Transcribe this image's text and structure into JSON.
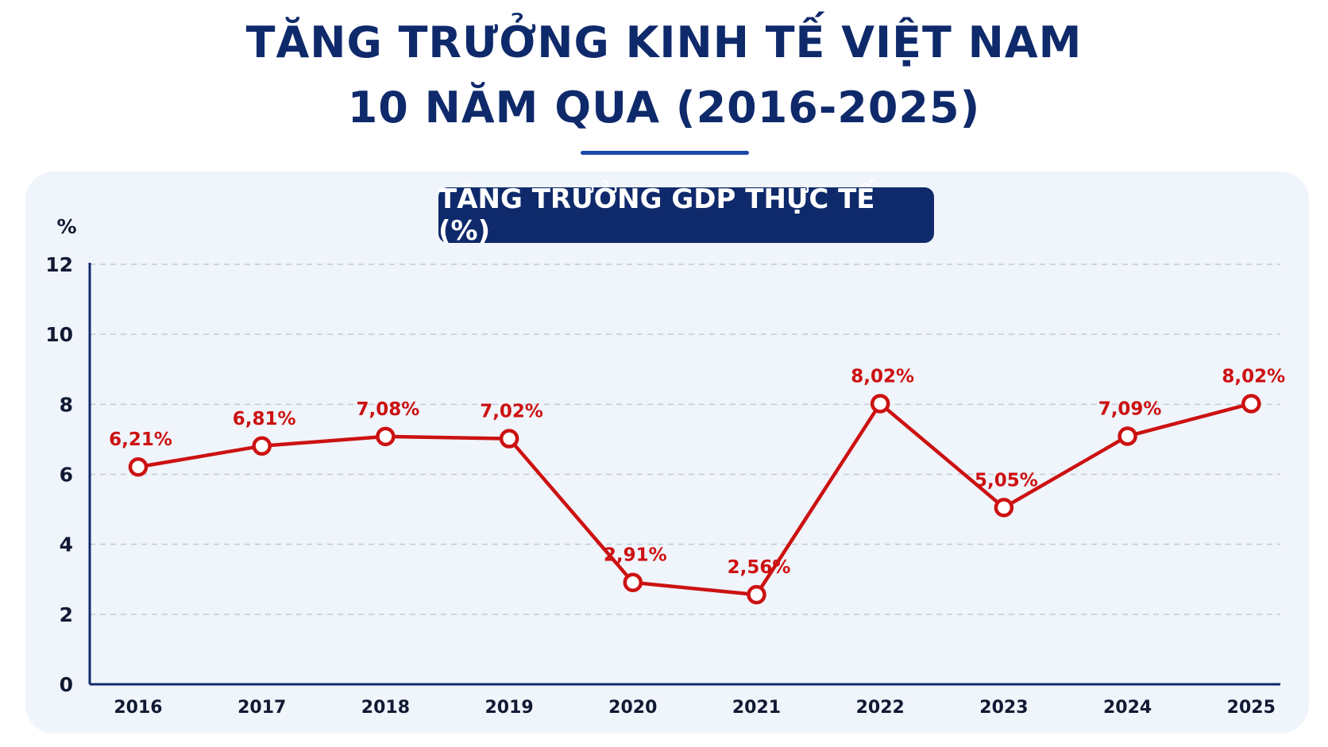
{
  "header": {
    "title_line1": "TĂNG TRƯỞNG KINH TẾ VIỆT NAM",
    "title_line2": "10 NĂM QUA (2016-2025)"
  },
  "colors": {
    "title": "#0f2a6b",
    "accent_rule": "#1d47a8",
    "panel": "#f0f4fb",
    "pill": "#0f2a6b",
    "line": "#cc1111"
  },
  "chart_data": {
    "type": "line",
    "title": "TĂNG TRƯỞNG GDP THỰC TẾ (%)",
    "ylabel": "%",
    "xlabel": "",
    "ylim": [
      0,
      12
    ],
    "yticks": [
      0,
      2,
      4,
      6,
      8,
      10,
      12
    ],
    "grid": true,
    "categories": [
      "2016",
      "2017",
      "2018",
      "2019",
      "2020",
      "2021",
      "2022",
      "2023",
      "2024",
      "2025"
    ],
    "series": [
      {
        "values": [
          6.21,
          6.81,
          7.08,
          7.02,
          2.91,
          2.56,
          8.02,
          5.05,
          7.09,
          8.02
        ],
        "labels": [
          "6,21%",
          "6,81%",
          "7,08%",
          "7,02%",
          "2,91%",
          "2,56%",
          "8,02%",
          "5,05%",
          "7,09%",
          "8,02%"
        ]
      }
    ]
  }
}
